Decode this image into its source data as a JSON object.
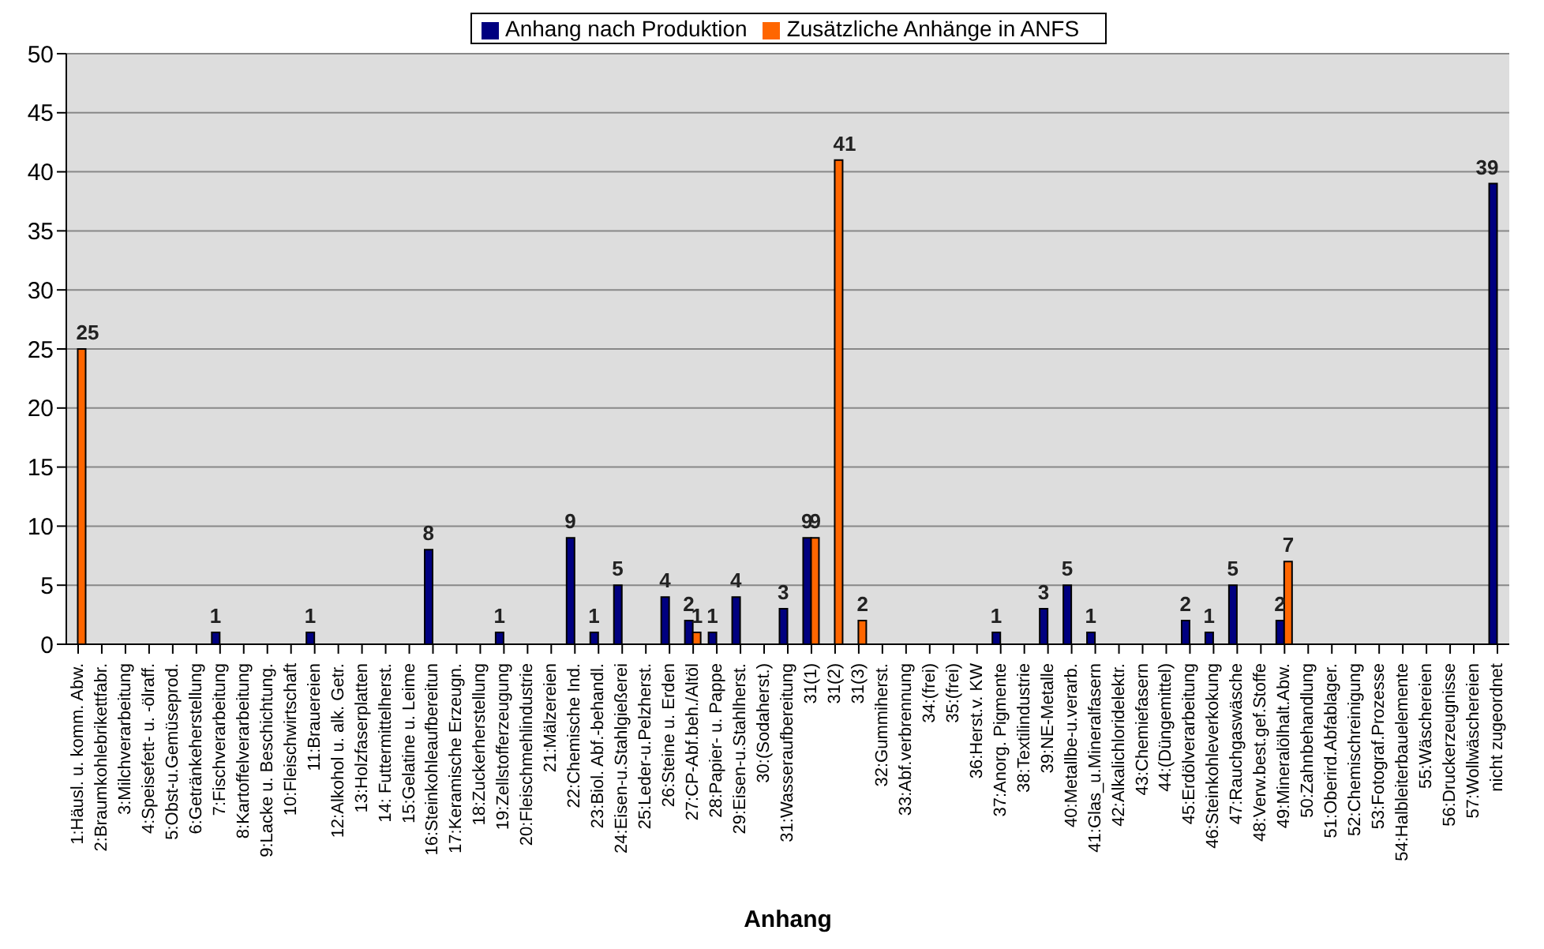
{
  "chart_data": {
    "type": "bar",
    "xlabel": "Anhang",
    "categories": [
      "1:Häusl. u. komm. Abw.",
      "2:Braumkohlebrikettfabr.",
      "3:Milchverarbeitung",
      "4:Speisefett- u. -ölraff.",
      "5:Obst-u.Gemüseprod.",
      "6:Getränkeherstellung",
      "7:Fischverarbeitung",
      "8:Kartoffelverarbeitung",
      "9:Lacke u. Beschichtung.",
      "10:Fleischwirtschaft",
      "11:Brauereien",
      "12:Alkohol u. alk. Getr.",
      "13:Holzfaserplatten",
      "14: Futtermittelherst.",
      "15:Gelatine u. Leime",
      "16:Steinkohleaufbereitun",
      "17:Keramische Erzeugn.",
      "18:Zuckerherstellung",
      "19:Zellstofferzeugung",
      "20:Fleischmehlindustrie",
      "21:Mälzereien",
      "22:Chemische Ind.",
      "23:Biol. Abf.-behandl.",
      "24:Eisen-u.Stahlgießerei",
      "25:Leder-u.Pelzherst.",
      "26:Steine u. Erden",
      "27:CP-Abf.beh./Altöl",
      "28:Papier- u. Pappe",
      "29:Eisen-u.Stahlherst.",
      "30:(Sodaherst.)",
      "31:Wasseraufbereitung",
      "31(1)",
      "31(2)",
      "31(3)",
      "32:Gummiherst.",
      "33:Abf.verbrennung",
      "34:(frei)",
      "35:(frei)",
      "36:Herst.v. KW",
      "37:Anorg. Pigmente",
      "38:Textilindustrie",
      "39:NE-Metalle",
      "40:Metallbe-u.verarb.",
      "41:Glas_u.Mineralfasern",
      "42:Alkalichloridelektr.",
      "43:Chemiefasern",
      "44:(Düngemittel)",
      "45:Erdölverarbeitung",
      "46:Steinkohleverkokung",
      "47:Rauchgaswäsche",
      "48:Verw.best.gef.Stoffe",
      "49:Mineralölhalt.Abw.",
      "50:Zahnbehandlung",
      "51:Oberird.Abfablager.",
      "52:Chemischreinigung",
      "53:Fotograf.Prozesse",
      "54:Halbleiterbauelemente",
      "55:Wäschereien",
      "56:Druckerzeugnisse",
      "57:Wollwäschereien",
      "nicht zugeordnet"
    ],
    "series": [
      {
        "name": "Anhang nach Produktion",
        "color": "#000080",
        "values": [
          null,
          null,
          null,
          null,
          null,
          null,
          1,
          null,
          null,
          null,
          1,
          null,
          null,
          null,
          null,
          8,
          null,
          null,
          1,
          null,
          null,
          9,
          1,
          5,
          null,
          4,
          2,
          1,
          4,
          null,
          3,
          9,
          null,
          null,
          null,
          null,
          null,
          null,
          null,
          1,
          null,
          3,
          5,
          1,
          null,
          null,
          null,
          2,
          1,
          5,
          null,
          2,
          null,
          null,
          null,
          null,
          null,
          null,
          null,
          null,
          39
        ]
      },
      {
        "name": "Zusätzliche Anhänge in ANFS",
        "color": "#ff6600",
        "values": [
          25,
          null,
          null,
          null,
          null,
          null,
          null,
          null,
          null,
          null,
          null,
          null,
          null,
          null,
          null,
          null,
          null,
          null,
          null,
          null,
          null,
          null,
          null,
          null,
          null,
          null,
          1,
          null,
          null,
          null,
          null,
          9,
          41,
          2,
          null,
          null,
          null,
          null,
          null,
          null,
          null,
          null,
          null,
          null,
          null,
          null,
          null,
          null,
          null,
          null,
          null,
          7,
          null,
          null,
          null,
          null,
          null,
          null,
          null,
          null,
          null
        ]
      }
    ],
    "ylim": [
      0,
      50
    ],
    "yticks": [
      0,
      5,
      10,
      15,
      20,
      25,
      30,
      35,
      40,
      45,
      50
    ],
    "grid": "y",
    "legend": "top",
    "data_labels": true
  }
}
